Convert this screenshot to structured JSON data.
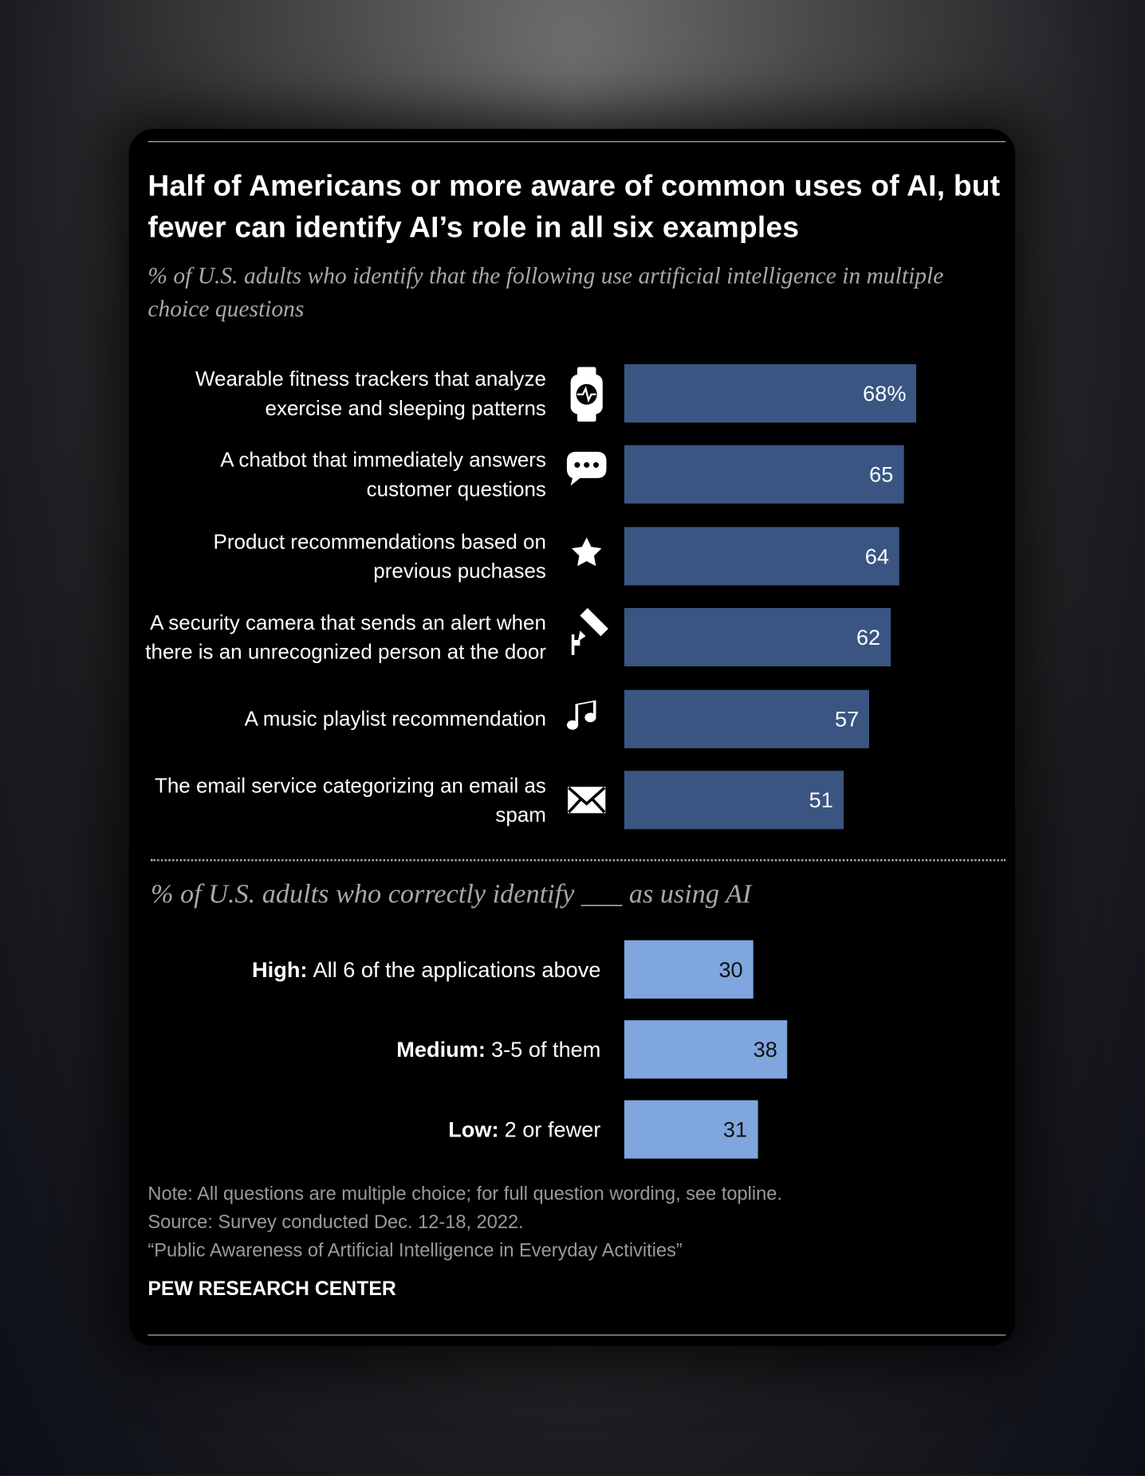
{
  "chart_data": [
    {
      "type": "bar",
      "orientation": "horizontal",
      "title": "Half of Americans or more aware of common uses of AI, but fewer can identify AI’s role in all six examples",
      "subtitle": "% of U.S. adults who identify that the following use artificial intelligence in multiple choice questions",
      "categories": [
        "Wearable fitness trackers that analyze exercise and sleeping patterns",
        "A chatbot that immediately answers customer questions",
        "Product recommendations based on previous puchases",
        "A security camera that sends an alert when there is an unrecognized person at the door",
        "A music playlist recommendation",
        "The email service categorizing an email as spam"
      ],
      "values": [
        68,
        65,
        64,
        62,
        57,
        51
      ],
      "value_labels": [
        "68%",
        "65",
        "64",
        "62",
        "57",
        "51"
      ],
      "color": "#3a5582"
    },
    {
      "type": "bar",
      "orientation": "horizontal",
      "subtitle": "% of U.S. adults who correctly identify ___ as using AI",
      "categories": [
        "High:",
        "Medium:",
        "Low:"
      ],
      "descriptions": [
        "All 6 of the applications above",
        "3-5 of them",
        "2 or fewer"
      ],
      "values": [
        30,
        38,
        31
      ],
      "color": "#7fa6de"
    }
  ],
  "footer": {
    "note": "Note: All questions are multiple choice; for full question wording, see topline.",
    "source": "Source: Survey conducted Dec. 12-18, 2022.",
    "report": "“Public Awareness of Artificial Intelligence in Everyday Activities”",
    "brand": "PEW RESEARCH CENTER"
  }
}
